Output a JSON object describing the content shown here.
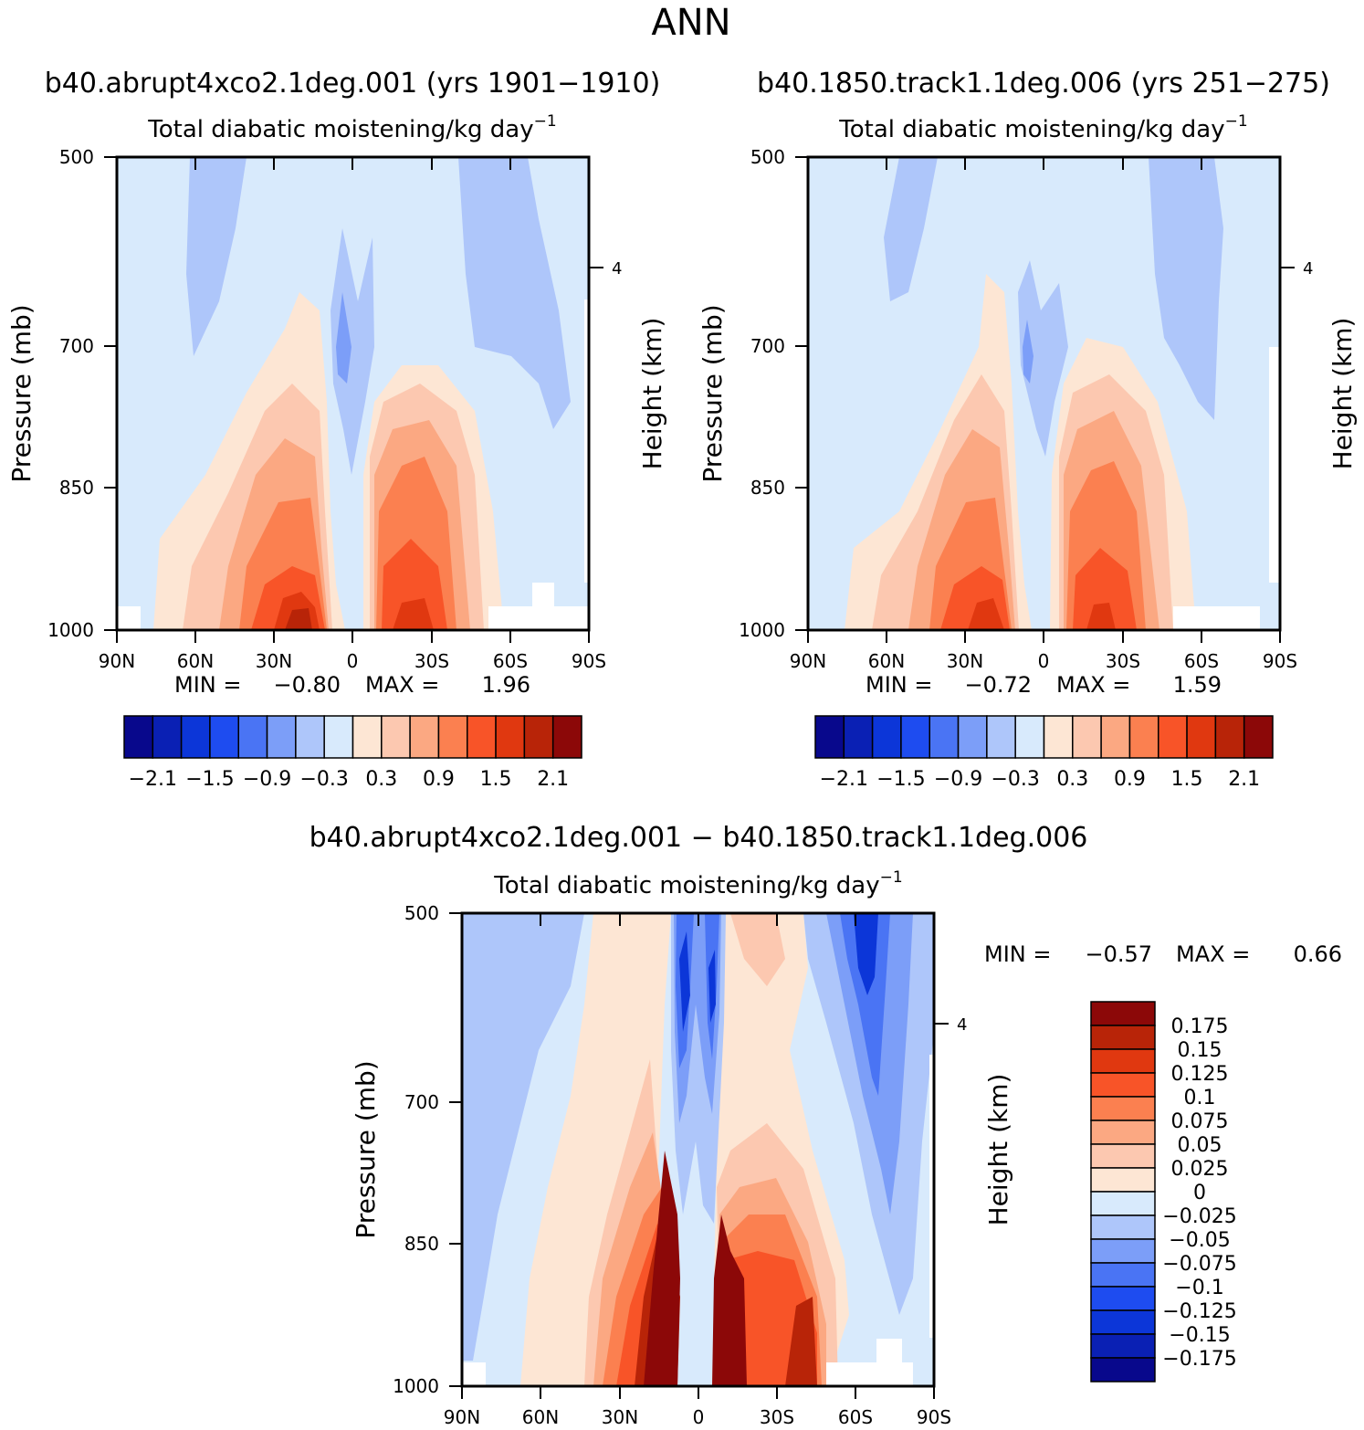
{
  "figure_title": "ANN",
  "panels": [
    {
      "case_title": "b40.abrupt4xco2.1deg.001 (yrs 1901-1910)",
      "variable": "Total diabatic moistening/kg day",
      "unit_exponent": "-1",
      "ylabel": "Pressure (mb)",
      "right_label": "Height (km)",
      "right_tick": "4",
      "yticks": [
        "500",
        "700",
        "850",
        "1000"
      ],
      "xticks": [
        "90N",
        "60N",
        "30N",
        "0",
        "30S",
        "60S",
        "90S"
      ],
      "min_label": "MIN =",
      "min_value": "-0.80",
      "max_label": "MAX =",
      "max_value": "1.96"
    },
    {
      "case_title": "b40.1850.track1.1deg.006 (yrs 251-275)",
      "variable": "Total diabatic moistening/kg day",
      "unit_exponent": "-1",
      "ylabel": "Pressure (mb)",
      "right_label": "Height (km)",
      "right_tick": "4",
      "yticks": [
        "500",
        "700",
        "850",
        "1000"
      ],
      "xticks": [
        "90N",
        "60N",
        "30N",
        "0",
        "30S",
        "60S",
        "90S"
      ],
      "min_label": "MIN =",
      "min_value": "-0.72",
      "max_label": "MAX =",
      "max_value": "1.59"
    },
    {
      "case_title": "b40.abrupt4xco2.1deg.001 - b40.1850.track1.1deg.006",
      "variable": "Total diabatic moistening/kg day",
      "unit_exponent": "-1",
      "ylabel": "Pressure (mb)",
      "right_label": "Height (km)",
      "right_tick": "4",
      "yticks": [
        "500",
        "700",
        "850",
        "1000"
      ],
      "xticks": [
        "90N",
        "60N",
        "30N",
        "0",
        "30S",
        "60S",
        "90S"
      ],
      "min_label": "MIN =",
      "min_value": "-0.57",
      "max_label": "MAX =",
      "max_value": "0.66"
    }
  ],
  "colorbar_top": {
    "colors": [
      "#08088c",
      "#0a20b4",
      "#0c36d8",
      "#1e4cf0",
      "#4a74f4",
      "#7c9ef8",
      "#aec6fa",
      "#d8eafc",
      "#fde6d4",
      "#fcc8b0",
      "#fba882",
      "#fb8050",
      "#f85428",
      "#e03810",
      "#b82408",
      "#8c0808"
    ],
    "labels": [
      "-2.1",
      "-1.5",
      "-0.9",
      "-0.3",
      "0.3",
      "0.9",
      "1.5",
      "2.1"
    ]
  },
  "colorbar_bottom": {
    "colors": [
      "#8c0808",
      "#b82408",
      "#e03810",
      "#f85428",
      "#fb8050",
      "#fba882",
      "#fcc8b0",
      "#fde6d4",
      "#d8eafc",
      "#aec6fa",
      "#7c9ef8",
      "#4a74f4",
      "#1e4cf0",
      "#0c36d8",
      "#0a20b4",
      "#08088c"
    ],
    "labels": [
      "0.175",
      "0.15",
      "0.125",
      "0.1",
      "0.075",
      "0.05",
      "0.025",
      "0",
      "-0.025",
      "-0.05",
      "-0.075",
      "-0.1",
      "-0.125",
      "-0.15",
      "-0.175"
    ]
  },
  "chart_data": [
    {
      "type": "heatmap",
      "title": "b40.abrupt4xco2.1deg.001 (yrs 1901-1910)",
      "subtitle": "Total diabatic moistening/kg day-1",
      "xlabel": "",
      "ylabel": "Pressure (mb)",
      "x_range": [
        "90N",
        "90S"
      ],
      "y_range": [
        500,
        1000
      ],
      "min": -0.8,
      "max": 1.96,
      "features": [
        {
          "lat": 20,
          "pressure": 960,
          "value": 1.8
        },
        {
          "lat": -22,
          "pressure": 950,
          "value": 1.5
        },
        {
          "lat": 6,
          "pressure": 680,
          "value": -0.6
        }
      ]
    },
    {
      "type": "heatmap",
      "title": "b40.1850.track1.1deg.006 (yrs 251-275)",
      "subtitle": "Total diabatic moistening/kg day-1",
      "xlabel": "",
      "ylabel": "Pressure (mb)",
      "x_range": [
        "90N",
        "90S"
      ],
      "y_range": [
        500,
        1000
      ],
      "min": -0.72,
      "max": 1.59,
      "features": [
        {
          "lat": 20,
          "pressure": 960,
          "value": 1.5
        },
        {
          "lat": -22,
          "pressure": 950,
          "value": 1.4
        },
        {
          "lat": 6,
          "pressure": 690,
          "value": -0.5
        }
      ]
    },
    {
      "type": "heatmap",
      "title": "b40.abrupt4xco2.1deg.001 - b40.1850.track1.1deg.006",
      "subtitle": "Total diabatic moistening/kg day-1",
      "xlabel": "",
      "ylabel": "Pressure (mb)",
      "x_range": [
        "90N",
        "90S"
      ],
      "y_range": [
        500,
        1000
      ],
      "min": -0.57,
      "max": 0.66,
      "features": [
        {
          "lat": 12,
          "pressure": 900,
          "value": 0.2
        },
        {
          "lat": -8,
          "pressure": 900,
          "value": 0.2
        },
        {
          "lat": 0,
          "pressure": 650,
          "value": -0.15
        },
        {
          "lat": -60,
          "pressure": 650,
          "value": -0.15
        }
      ]
    }
  ]
}
